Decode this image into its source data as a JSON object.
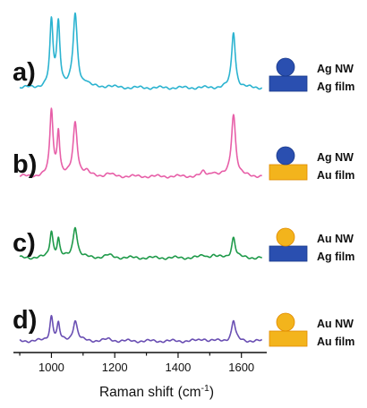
{
  "chart_data": {
    "type": "line",
    "xlabel": "Raman shift",
    "xlabel_unit_base": "(cm",
    "xlabel_unit_sup": "-1",
    "xlabel_unit_close": ")",
    "xlim": [
      880,
      1680
    ],
    "xticks": [
      1000,
      1200,
      1400,
      1600
    ],
    "y_axis_shown": false,
    "legend_position": "right (schematic icons per trace)",
    "colors": {
      "ag": "#2a4fb0",
      "au": "#f3b41c",
      "ag_dark": "#1a3a8a",
      "au_dark": "#e08a00"
    },
    "series": [
      {
        "label": "a)",
        "color": "#2bb3d0",
        "nanowire": "Ag NW",
        "film": "Ag film",
        "nanowire_material": "ag",
        "film_material": "ag",
        "baseline": 0.02,
        "peaks": [
          [
            1000,
            0.78,
            6
          ],
          [
            1022,
            0.77,
            6
          ],
          [
            1075,
            0.88,
            8
          ],
          [
            1110,
            0.05,
            10
          ],
          [
            1180,
            0.02,
            15
          ],
          [
            1575,
            0.68,
            7
          ]
        ]
      },
      {
        "label": "b)",
        "color": "#e75fa8",
        "nanowire": "Ag NW",
        "film": "Au film",
        "nanowire_material": "ag",
        "film_material": "au",
        "baseline": 0.03,
        "peaks": [
          [
            1000,
            0.8,
            6
          ],
          [
            1022,
            0.53,
            5
          ],
          [
            1075,
            0.65,
            8
          ],
          [
            1110,
            0.05,
            10
          ],
          [
            1180,
            0.03,
            12
          ],
          [
            1480,
            0.05,
            8
          ],
          [
            1510,
            0.05,
            10
          ],
          [
            1575,
            0.76,
            8
          ]
        ]
      },
      {
        "label": "c)",
        "color": "#1f9a4a",
        "nanowire": "Au NW",
        "film": "Ag film",
        "nanowire_material": "au",
        "film_material": "ag",
        "baseline": 0.02,
        "peaks": [
          [
            1000,
            0.32,
            6
          ],
          [
            1022,
            0.22,
            5
          ],
          [
            1075,
            0.38,
            8
          ],
          [
            1180,
            0.03,
            15
          ],
          [
            1480,
            0.03,
            10
          ],
          [
            1510,
            0.03,
            10
          ],
          [
            1575,
            0.25,
            7
          ]
        ]
      },
      {
        "label": "d)",
        "color": "#6a4fb3",
        "nanowire": "Au NW",
        "film": "Au film",
        "nanowire_material": "au",
        "film_material": "au",
        "baseline": 0.02,
        "peaks": [
          [
            1000,
            0.3,
            6
          ],
          [
            1022,
            0.2,
            5
          ],
          [
            1075,
            0.25,
            8
          ],
          [
            1180,
            0.02,
            15
          ],
          [
            1480,
            0.03,
            10
          ],
          [
            1575,
            0.25,
            7
          ]
        ]
      }
    ]
  }
}
